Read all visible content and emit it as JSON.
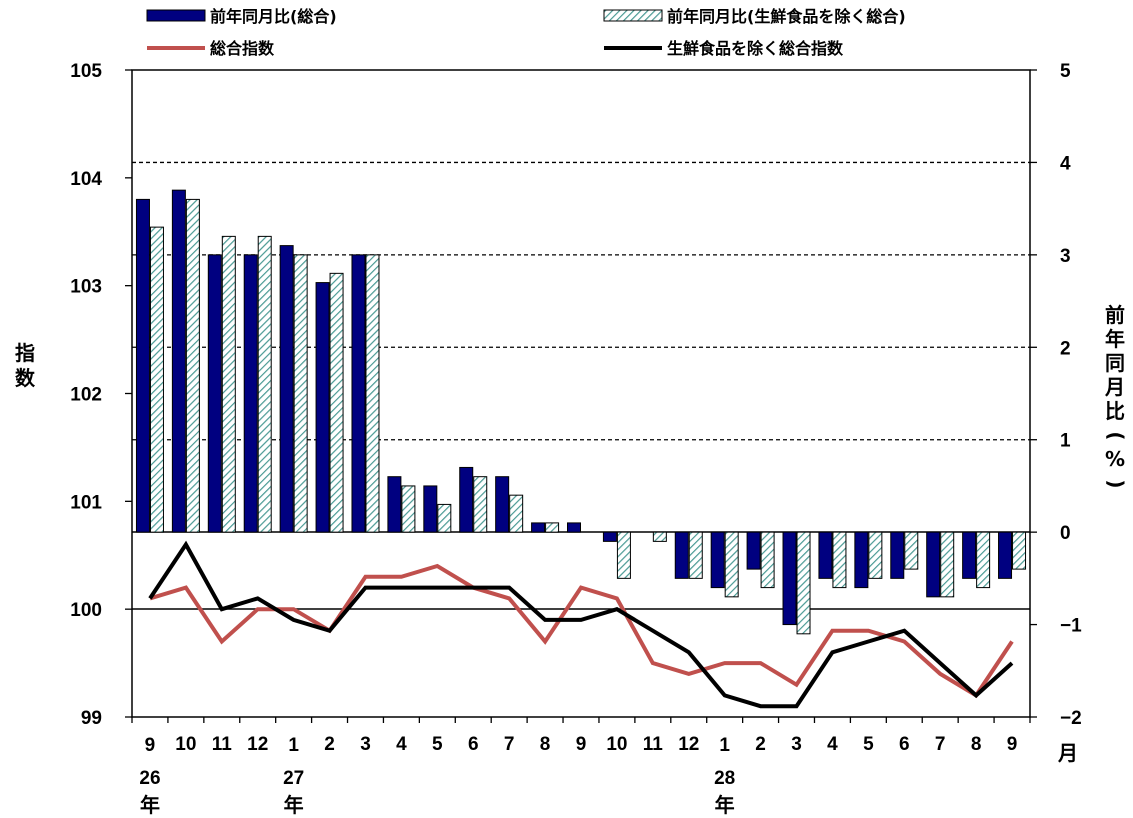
{
  "chart_data": {
    "type": "bar+line",
    "title": "",
    "legend": {
      "placement": "top",
      "items": [
        {
          "label": "前年同月比(総合)",
          "kind": "bar",
          "color": "#000080"
        },
        {
          "label": "前年同月比(生鮮食品を除く総合)",
          "kind": "hatched-bar",
          "color": "#5aa8a0"
        },
        {
          "label": "総合指数",
          "kind": "line",
          "color": "#c0504d"
        },
        {
          "label": "生鮮食品を除く総合指数",
          "kind": "line",
          "color": "#000000"
        }
      ]
    },
    "x_ticks": [
      "9",
      "10",
      "11",
      "12",
      "1",
      "2",
      "3",
      "4",
      "5",
      "6",
      "7",
      "8",
      "9",
      "10",
      "11",
      "12",
      "1",
      "2",
      "3",
      "4",
      "5",
      "6",
      "7",
      "8",
      "9"
    ],
    "x_unit": "月",
    "year_labels": [
      {
        "at": 0,
        "num": "26",
        "suffix": "年"
      },
      {
        "at": 4,
        "num": "27",
        "suffix": "年"
      },
      {
        "at": 16,
        "num": "28",
        "suffix": "年"
      }
    ],
    "left_axis": {
      "label": "指数",
      "min": 99,
      "max": 105,
      "ticks": [
        "99",
        "100",
        "101",
        "102",
        "103",
        "104",
        "105"
      ]
    },
    "right_axis": {
      "label": "前年同月比(%)",
      "min": -2,
      "max": 5,
      "ticks": [
        "−2",
        "−1",
        "0",
        "1",
        "2",
        "3",
        "4",
        "5"
      ]
    },
    "series": [
      {
        "name": "前年同月比(総合)",
        "axis": "right",
        "type": "bar",
        "values": [
          3.6,
          3.7,
          3.0,
          3.0,
          3.1,
          2.7,
          3.0,
          0.6,
          0.5,
          0.7,
          0.6,
          0.1,
          0.1,
          -0.1,
          0.0,
          -0.5,
          -0.6,
          -0.4,
          -1.0,
          -0.5,
          -0.6,
          -0.5,
          -0.7,
          -0.5,
          -0.5
        ]
      },
      {
        "name": "前年同月比(生鮮食品を除く総合)",
        "axis": "right",
        "type": "bar",
        "values": [
          3.3,
          3.6,
          3.2,
          3.2,
          3.0,
          2.8,
          3.0,
          0.5,
          0.3,
          0.6,
          0.4,
          0.1,
          0.0,
          -0.5,
          -0.1,
          -0.5,
          -0.7,
          -0.6,
          -1.1,
          -0.6,
          -0.5,
          -0.4,
          -0.7,
          -0.6,
          -0.4
        ]
      },
      {
        "name": "総合指数",
        "axis": "left",
        "type": "line",
        "values": [
          100.1,
          100.2,
          99.7,
          100.0,
          100.0,
          99.8,
          100.3,
          100.3,
          100.4,
          100.2,
          100.1,
          99.7,
          100.2,
          100.1,
          99.5,
          99.4,
          99.5,
          99.5,
          99.3,
          99.8,
          99.8,
          99.7,
          99.4,
          99.2,
          99.7
        ]
      },
      {
        "name": "生鮮食品を除く総合指数",
        "axis": "left",
        "type": "line",
        "values": [
          100.1,
          100.6,
          100.0,
          100.1,
          99.9,
          99.8,
          100.2,
          100.2,
          100.2,
          100.2,
          100.2,
          99.9,
          99.9,
          100.0,
          99.8,
          99.6,
          99.2,
          99.1,
          99.1,
          99.6,
          99.7,
          99.8,
          99.5,
          99.2,
          99.5
        ]
      }
    ],
    "grid": {
      "horizontal_dashed": true
    }
  }
}
